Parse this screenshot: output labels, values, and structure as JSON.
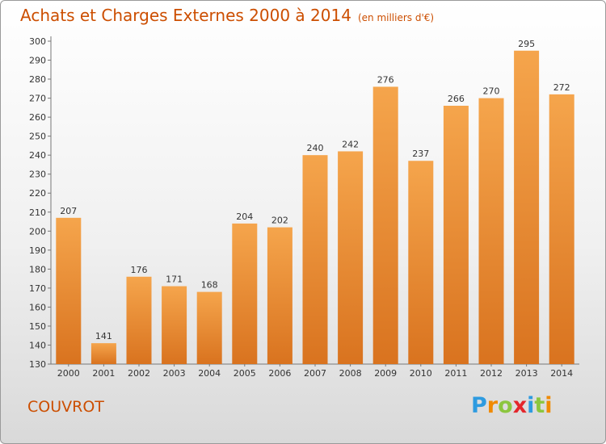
{
  "header": {
    "title": "Achats et Charges Externes 2000 à 2014",
    "unit": "(en milliers d'€)"
  },
  "footer": {
    "commune": "COUVROT",
    "logo_letters": [
      "P",
      "r",
      "o",
      "x",
      "i",
      "t",
      "i"
    ],
    "logo_colors": [
      "#2e9be0",
      "#f08a00",
      "#8cc63f",
      "#e4262c",
      "#2e9be0",
      "#8cc63f",
      "#f08a00"
    ]
  },
  "colors": {
    "bar_light": "#f5a54c",
    "bar_dark": "#d9731f",
    "title": "#cc4e00"
  },
  "chart_data": {
    "type": "bar",
    "title": "Achats et Charges Externes 2000 à 2014",
    "subtitle": "(en milliers d'€)",
    "categories": [
      "2000",
      "2001",
      "2002",
      "2003",
      "2004",
      "2005",
      "2006",
      "2007",
      "2008",
      "2009",
      "2010",
      "2011",
      "2012",
      "2013",
      "2014"
    ],
    "values": [
      207,
      141,
      176,
      171,
      168,
      204,
      202,
      240,
      242,
      276,
      237,
      266,
      270,
      295,
      272
    ],
    "ylim": [
      130,
      300
    ],
    "yticks": [
      130,
      140,
      150,
      160,
      170,
      180,
      190,
      200,
      210,
      220,
      230,
      240,
      250,
      260,
      270,
      280,
      290,
      300
    ],
    "grid": false,
    "data_labels": true
  }
}
